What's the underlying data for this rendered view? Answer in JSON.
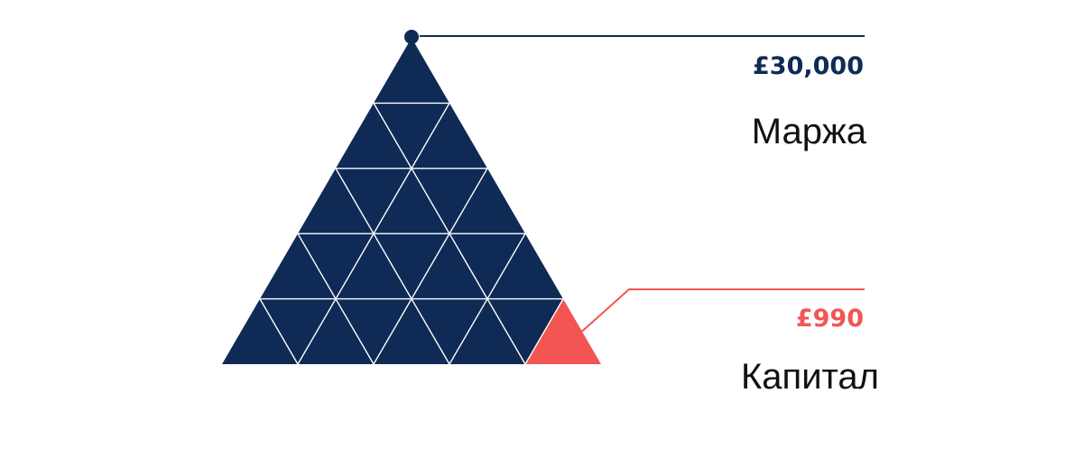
{
  "colors": {
    "navy": "#0f2a55",
    "accent": "#f25552",
    "grid_line": "#ffffff",
    "label_text": "#111111"
  },
  "pyramid": {
    "rows": 5,
    "highlighted_cell": "bottom-right"
  },
  "margin": {
    "amount": "£30,000",
    "label": "Маржа"
  },
  "capital": {
    "amount": "£990",
    "label": "Капитал"
  }
}
